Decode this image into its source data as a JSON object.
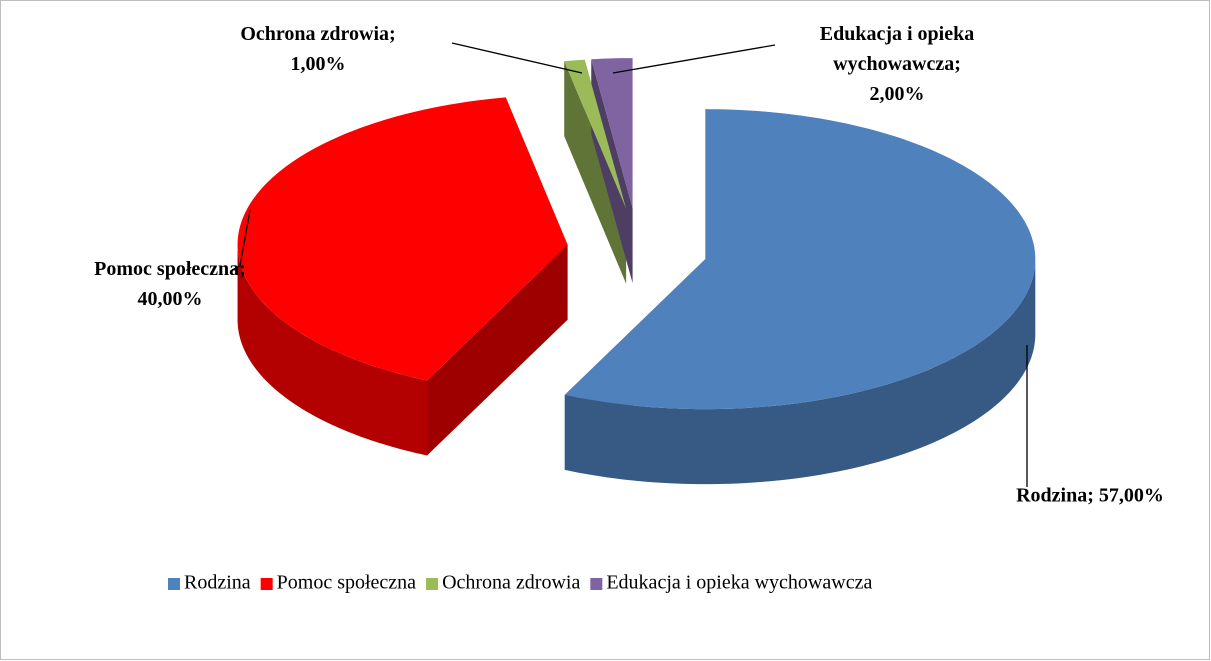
{
  "chart_data": {
    "type": "pie",
    "categories": [
      "Rodzina",
      "Pomoc społeczna",
      "Ochrona zdrowia",
      "Edukacja i opieka wychowawcza"
    ],
    "values": [
      57,
      40,
      1,
      2
    ],
    "value_labels": [
      "Rodzina; 57,00%",
      "Pomoc społeczna;\n40,00%",
      "Ochrona zdrowia;\n1,00%",
      "Edukacja i opieka\nwychowawcza;\n2,00%"
    ],
    "colors": [
      "#4f81bd",
      "#ff0000",
      "#9bbb59",
      "#8064a2"
    ],
    "legend": "bottom"
  }
}
